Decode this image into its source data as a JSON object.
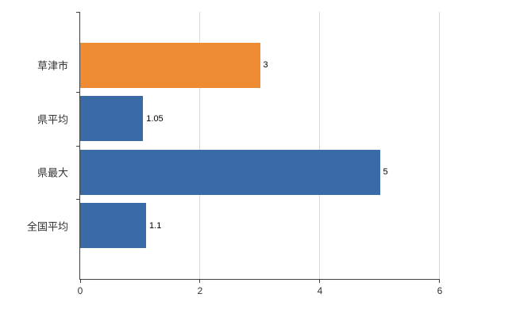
{
  "colors": {
    "background": "#ffffff",
    "axis": "#404040",
    "grid": "#d9d9d9",
    "blue": "#3a6ba6",
    "orange": "#ef8b33"
  },
  "chart_data": {
    "type": "bar",
    "orientation": "horizontal",
    "title": "",
    "xlabel": "",
    "ylabel": "",
    "categories": [
      "草津市",
      "県平均",
      "県最大",
      "全国平均"
    ],
    "values": [
      3,
      1.05,
      5,
      1.1
    ],
    "value_labels": [
      "3",
      "1.05",
      "5",
      "1.1"
    ],
    "bar_colors": [
      "#ef8b33",
      "#3a6ba6",
      "#3a6ba6",
      "#3a6ba6"
    ],
    "xlim": [
      0,
      6
    ],
    "xticks": [
      0,
      2,
      4,
      6
    ],
    "xtick_labels": [
      "0",
      "2",
      "4",
      "6"
    ],
    "grid": "vertical-gridlines",
    "legend": "none"
  }
}
